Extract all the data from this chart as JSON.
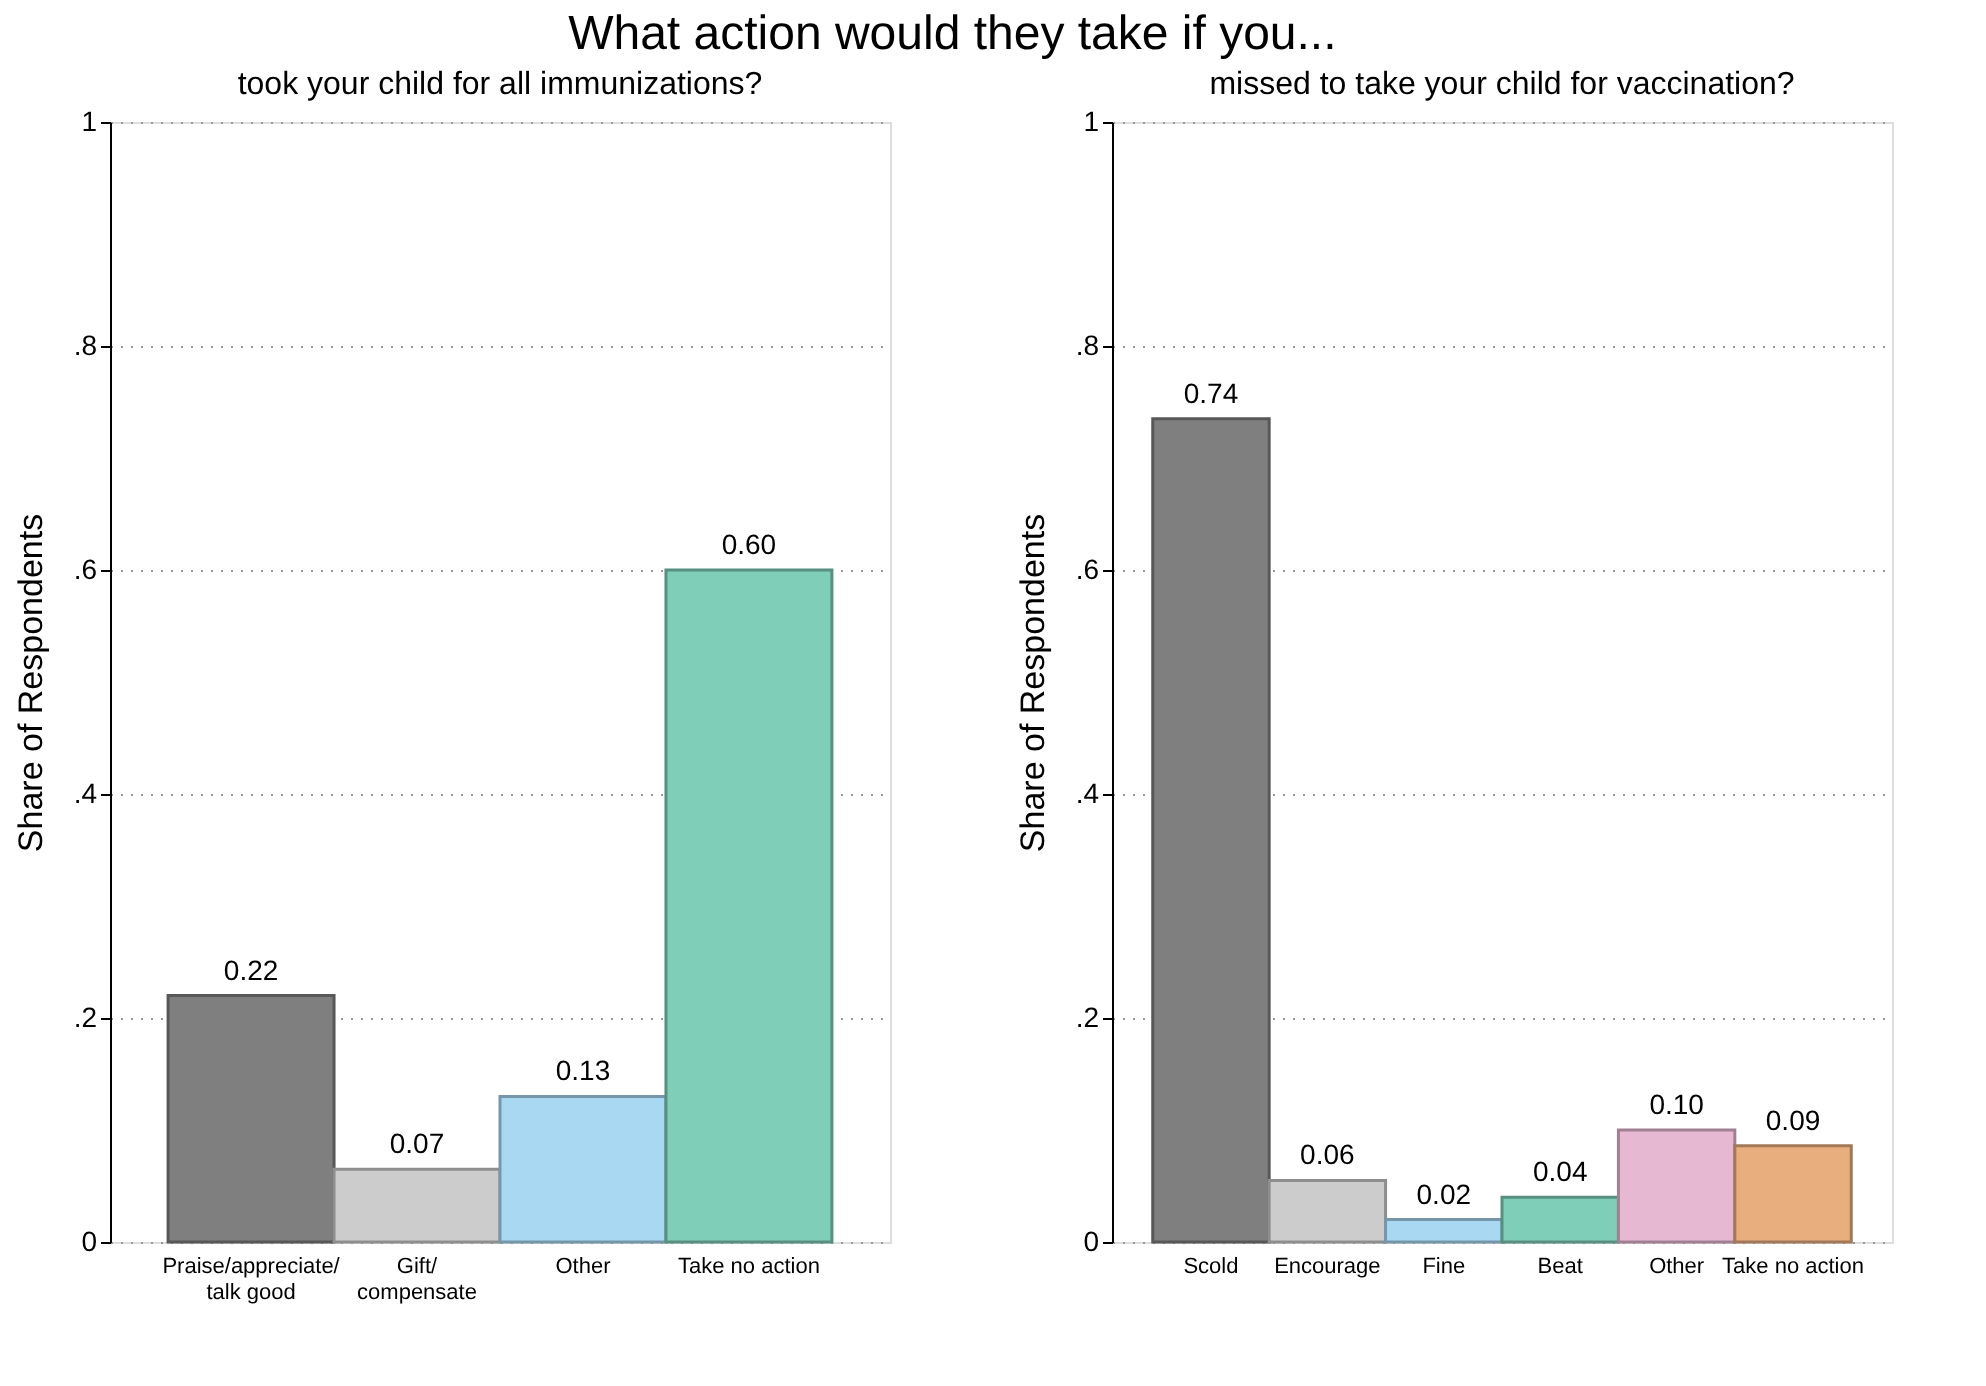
{
  "chart_data": [
    {
      "type": "bar",
      "title": "What action would they take if you...",
      "subtitle": "took your child for all immunizations?",
      "ylabel": "Share of Respondents",
      "categories": [
        "Praise/appreciate/\ntalk good",
        "Gift/\ncompensate",
        "Other",
        "Take no action"
      ],
      "values": [
        0.22,
        0.065,
        0.13,
        0.6
      ],
      "value_labels": [
        "0.22",
        "0.07",
        "0.13",
        "0.60"
      ],
      "colors": [
        "#7f7f7f",
        "#cccccc",
        "#a9d8f2",
        "#7fcfb8"
      ],
      "ylim": [
        0,
        1
      ],
      "yticks": [
        {
          "value": 0,
          "label": "0"
        },
        {
          "value": 0.2,
          "label": ".2"
        },
        {
          "value": 0.4,
          "label": ".4"
        },
        {
          "value": 0.6,
          "label": ".6"
        },
        {
          "value": 0.8,
          "label": ".8"
        },
        {
          "value": 1,
          "label": "1"
        }
      ],
      "grid": "y"
    },
    {
      "type": "bar",
      "subtitle": "missed to take your child for vaccination?",
      "ylabel": "Share of Respondents",
      "categories": [
        "Scold",
        "Encourage",
        "Fine",
        "Beat",
        "Other",
        "Take no action"
      ],
      "values": [
        0.735,
        0.055,
        0.02,
        0.04,
        0.1,
        0.086
      ],
      "value_labels": [
        "0.74",
        "0.06",
        "0.02",
        "0.04",
        "0.10",
        "0.09"
      ],
      "colors": [
        "#7f7f7f",
        "#cccccc",
        "#a9d8f2",
        "#7fcfb8",
        "#e6b8d2",
        "#e8ae7e"
      ],
      "ylim": [
        0,
        1
      ],
      "yticks": [
        {
          "value": 0,
          "label": "0"
        },
        {
          "value": 0.2,
          "label": ".2"
        },
        {
          "value": 0.4,
          "label": ".4"
        },
        {
          "value": 0.6,
          "label": ".6"
        },
        {
          "value": 0.8,
          "label": ".8"
        },
        {
          "value": 1,
          "label": "1"
        }
      ],
      "grid": "y"
    }
  ]
}
